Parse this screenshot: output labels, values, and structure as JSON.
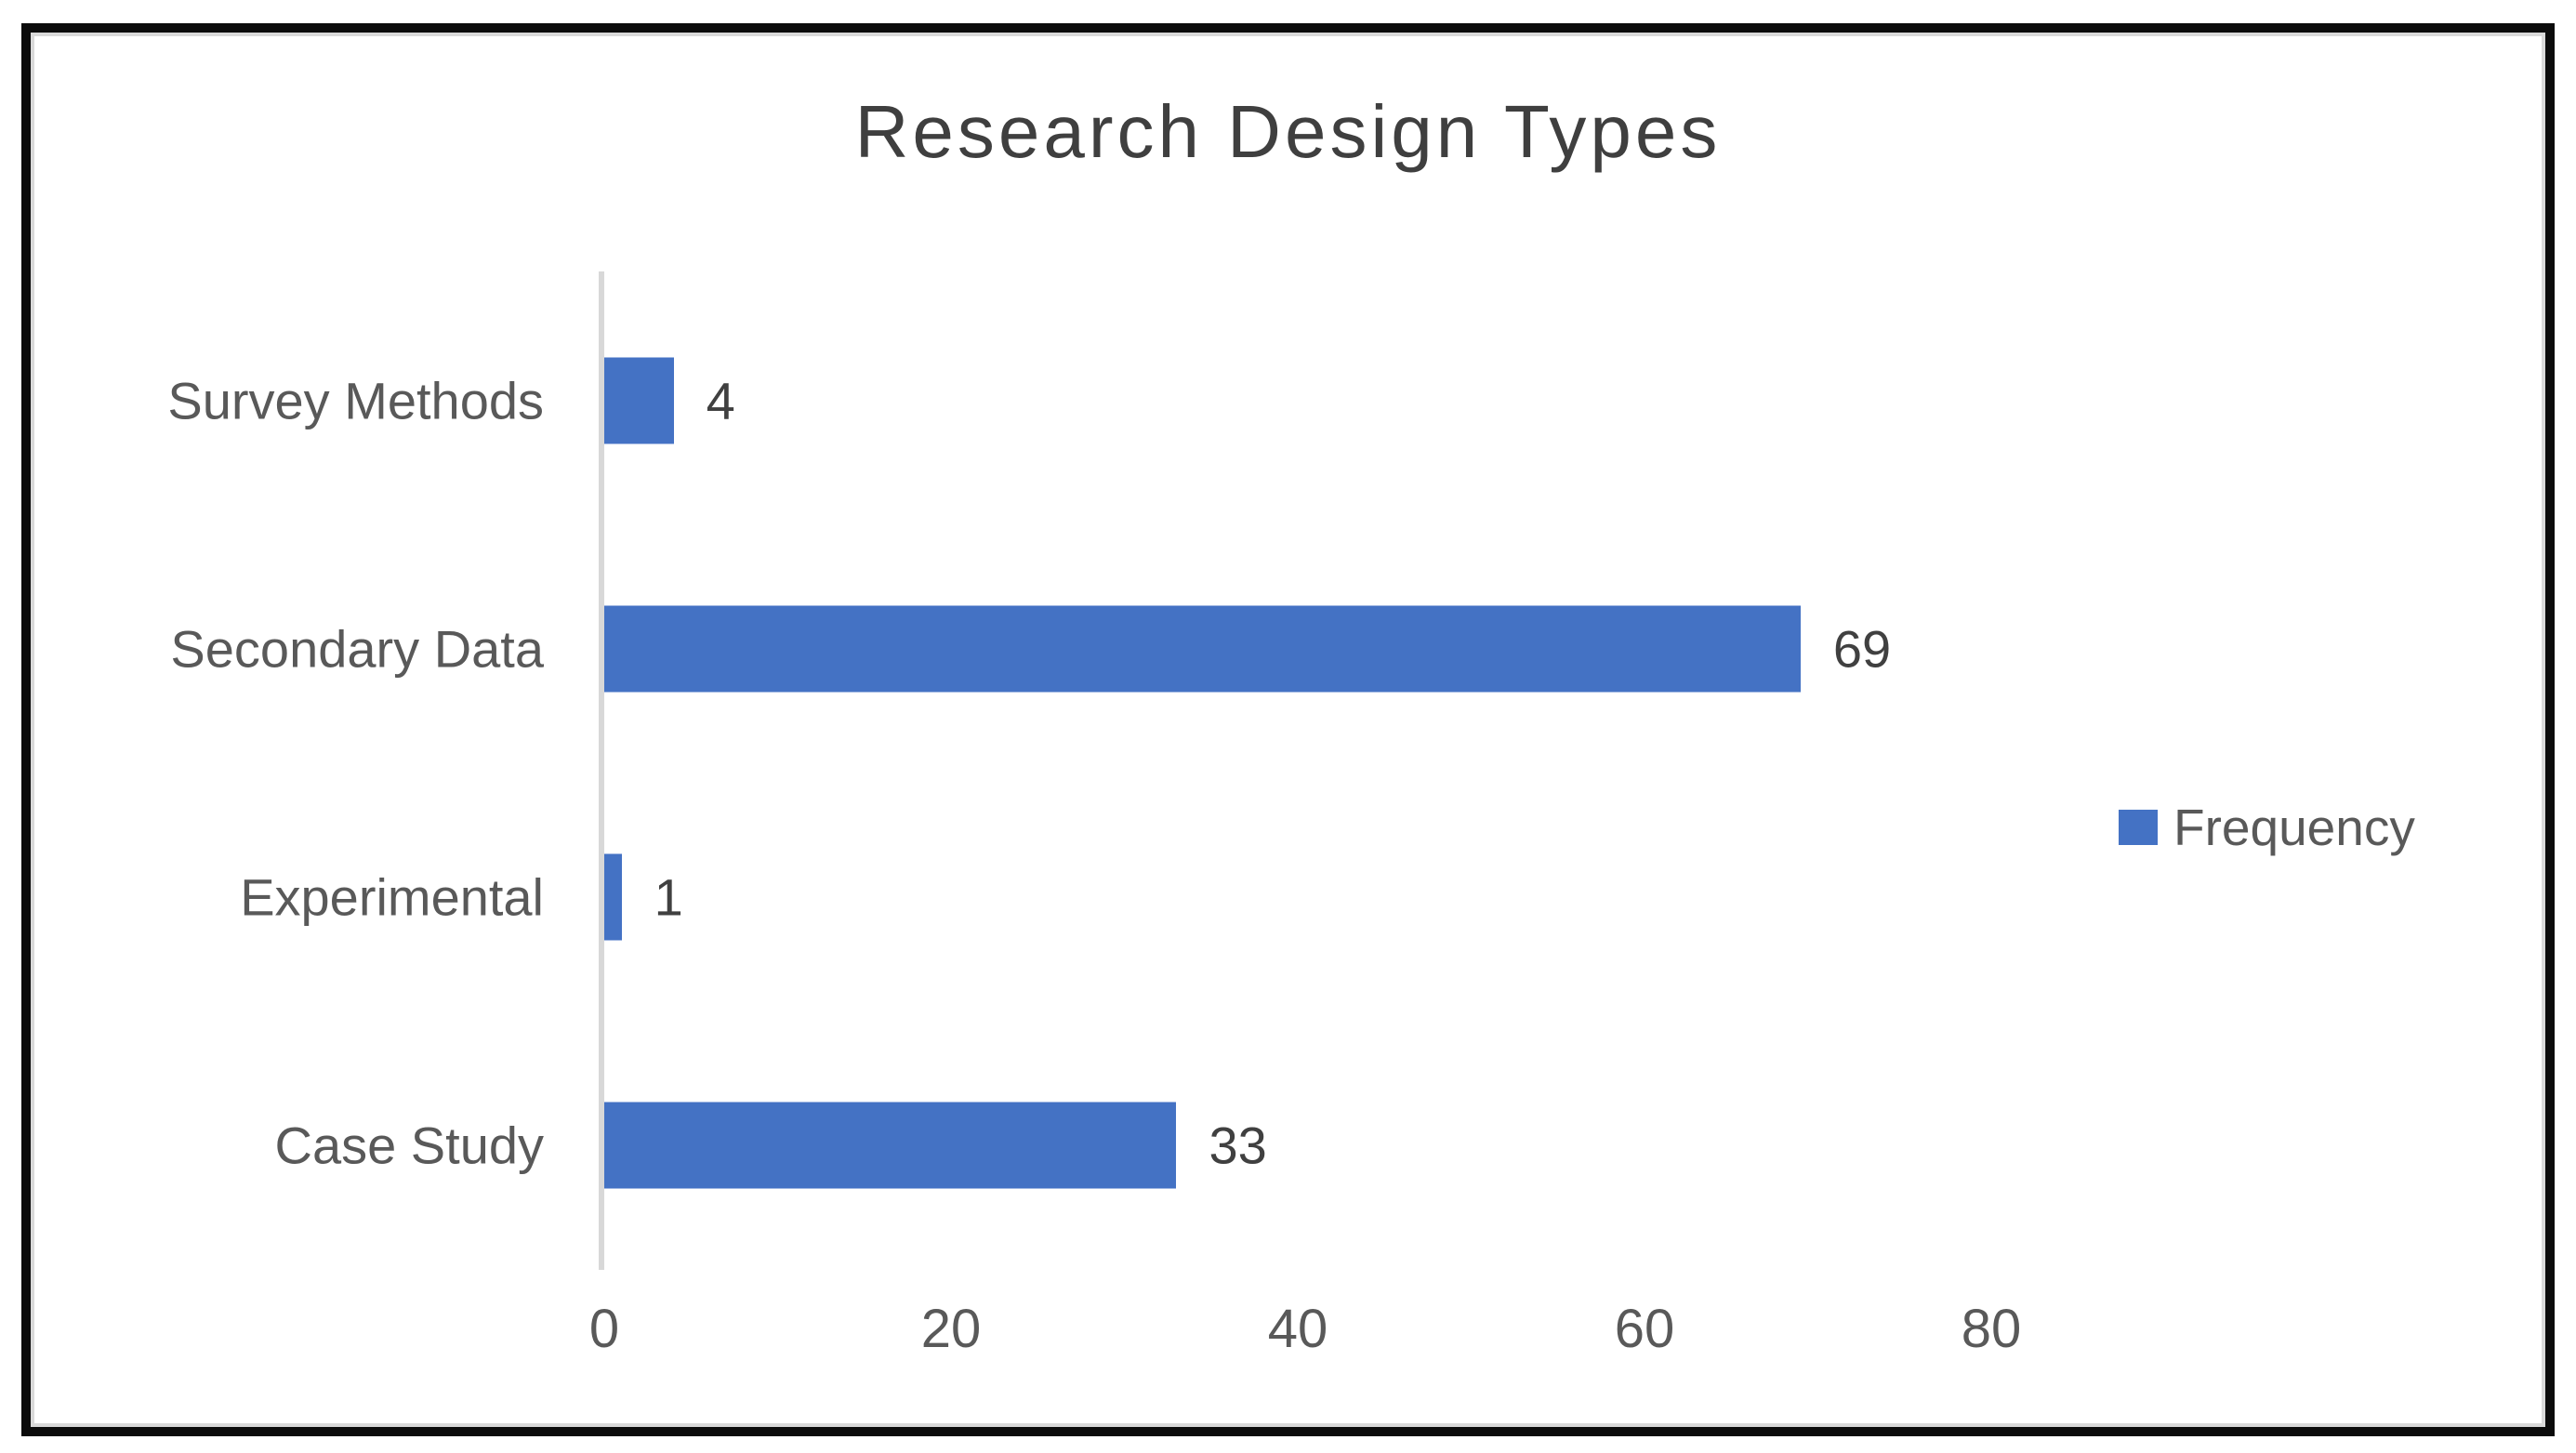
{
  "chart_data": {
    "type": "bar",
    "orientation": "horizontal",
    "title": "Research Design Types",
    "categories": [
      "Survey Methods",
      "Secondary Data",
      "Experimental",
      "Case Study"
    ],
    "series": [
      {
        "name": "Frequency",
        "values": [
          4,
          69,
          1,
          33
        ]
      }
    ],
    "data_labels": [
      "4",
      "69",
      "1",
      "33"
    ],
    "legend": {
      "position": "right",
      "entries": [
        "Frequency"
      ]
    },
    "x_ticks": [
      "0",
      "20",
      "40",
      "60",
      "80"
    ],
    "x_tick_values": [
      0,
      20,
      40,
      60,
      80
    ],
    "xlim": [
      0,
      85
    ],
    "grid": false,
    "axis_label_side": "left",
    "colors": {
      "bar": "#4472C4",
      "axis_line": "#D8D8D8",
      "category_text": "#595959",
      "tick_text": "#595959",
      "data_label_text": "#404040",
      "title_text": "#3F3F3F",
      "outer_border": "#0B0B0B",
      "inner_border": "#D9D9D9",
      "background": "#FFFFFF"
    }
  }
}
